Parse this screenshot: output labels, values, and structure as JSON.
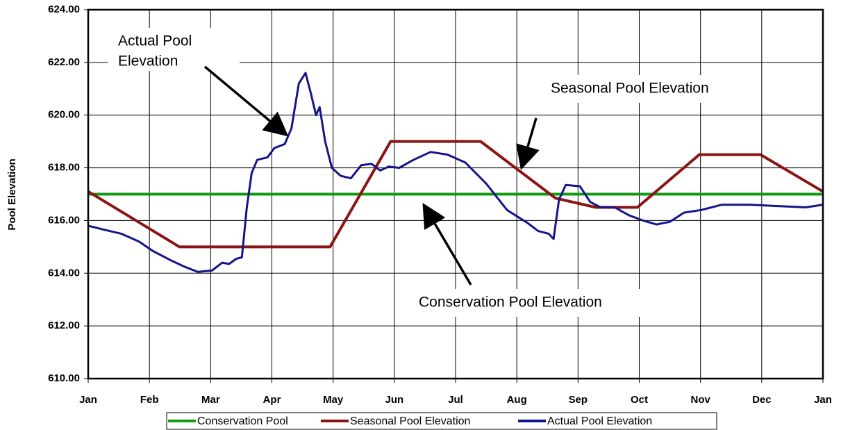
{
  "chart_data": {
    "type": "line",
    "y_label": "Pool Elevation",
    "xlim": [
      0,
      12
    ],
    "ylim": [
      610,
      624
    ],
    "grid": true,
    "xticks": [
      {
        "value": 0,
        "label": "Jan"
      },
      {
        "value": 1,
        "label": "Feb"
      },
      {
        "value": 2,
        "label": "Mar"
      },
      {
        "value": 3,
        "label": "Apr"
      },
      {
        "value": 4,
        "label": "May"
      },
      {
        "value": 5,
        "label": "Jun"
      },
      {
        "value": 6,
        "label": "Jul"
      },
      {
        "value": 7,
        "label": "Aug"
      },
      {
        "value": 8,
        "label": "Sep"
      },
      {
        "value": 9,
        "label": "Oct"
      },
      {
        "value": 10,
        "label": "Nov"
      },
      {
        "value": 11,
        "label": "Dec"
      },
      {
        "value": 12,
        "label": "Jan"
      }
    ],
    "yticks": [
      {
        "value": 610,
        "label": "610.00"
      },
      {
        "value": 612,
        "label": "612.00"
      },
      {
        "value": 614,
        "label": "614.00"
      },
      {
        "value": 616,
        "label": "616.00"
      },
      {
        "value": 618,
        "label": "618.00"
      },
      {
        "value": 620,
        "label": "620.00"
      },
      {
        "value": 622,
        "label": "622.00"
      },
      {
        "value": 624,
        "label": "624.00"
      }
    ],
    "series": [
      {
        "name": "Conservation Pool",
        "color": "#159a15",
        "x": [
          0,
          12
        ],
        "values": [
          617,
          617
        ]
      },
      {
        "name": "Seasonal Pool Elevation",
        "color": "#8b1414",
        "x": [
          0,
          1.49,
          3.95,
          4.94,
          6.41,
          7.63,
          8.29,
          8.97,
          9.98,
          10.98,
          12
        ],
        "values": [
          617.1,
          615,
          615,
          619,
          619,
          616.85,
          616.5,
          616.5,
          618.5,
          618.5,
          617.1
        ]
      },
      {
        "name": "Actual Pool Elevation",
        "color": "#14148c",
        "x": [
          0,
          0.26,
          0.54,
          0.83,
          1.05,
          1.34,
          1.57,
          1.79,
          2.02,
          2.19,
          2.3,
          2.42,
          2.51,
          2.59,
          2.67,
          2.76,
          2.93,
          3.04,
          3.21,
          3.32,
          3.44,
          3.55,
          3.64,
          3.72,
          3.78,
          3.87,
          3.98,
          4.12,
          4.29,
          4.46,
          4.63,
          4.77,
          4.91,
          5.08,
          5.31,
          5.59,
          5.87,
          6.16,
          6.5,
          6.84,
          7.18,
          7.35,
          7.52,
          7.6,
          7.69,
          7.8,
          8.03,
          8.2,
          8.37,
          8.6,
          8.83,
          9.06,
          9.28,
          9.5,
          9.73,
          10.01,
          10.35,
          10.81,
          11.26,
          11.72,
          12
        ],
        "values": [
          615.8,
          615.65,
          615.5,
          615.2,
          614.85,
          614.5,
          614.25,
          614.05,
          614.1,
          614.4,
          614.35,
          614.55,
          614.6,
          616.5,
          617.8,
          618.3,
          618.4,
          618.75,
          618.9,
          619.5,
          621.2,
          621.6,
          620.8,
          620.0,
          620.3,
          619.0,
          618.0,
          617.7,
          617.6,
          618.1,
          618.15,
          617.9,
          618.05,
          618.0,
          618.3,
          618.6,
          618.5,
          618.2,
          617.4,
          616.4,
          615.9,
          615.6,
          615.5,
          615.3,
          616.8,
          617.35,
          617.3,
          616.7,
          616.5,
          616.5,
          616.2,
          616.0,
          615.85,
          615.95,
          616.3,
          616.4,
          616.6,
          616.6,
          616.55,
          616.5,
          616.6
        ]
      }
    ],
    "annotations": [
      {
        "lines": [
          "Actual Pool",
          "Elevation"
        ]
      },
      {
        "text": "Seasonal Pool Elevation"
      },
      {
        "text": "Conservation Pool Elevation"
      }
    ]
  }
}
